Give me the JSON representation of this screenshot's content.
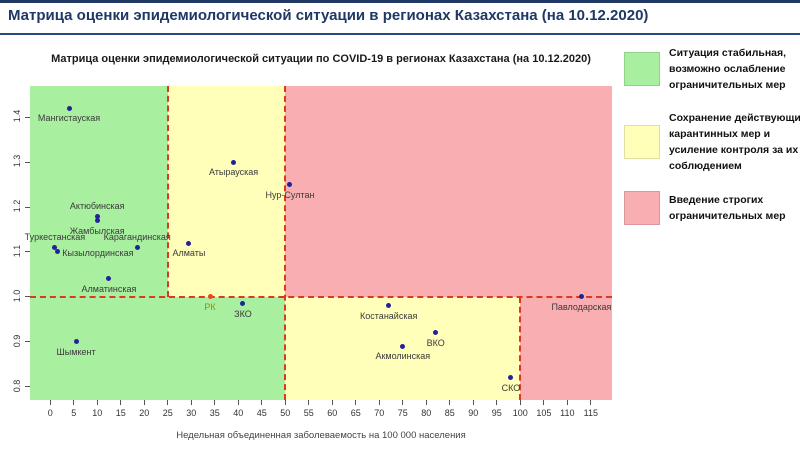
{
  "header": {
    "title": "Матрица оценки эпидемиологической ситуации в регионах Казахстана (на 10.12.2020)"
  },
  "legend": {
    "items": [
      {
        "color": "#a9efa0",
        "lines": [
          "Ситуация стабильная,",
          "возможно ослабление",
          "ограничительных мер"
        ]
      },
      {
        "color": "#ffffba",
        "lines": [
          "Сохранение действующих",
          "карантинных мер и",
          "усиление контроля за их",
          "соблюдением"
        ]
      },
      {
        "color": "#f9aeb2",
        "lines": [
          "Введение строгих",
          "ограничительных мер"
        ]
      }
    ]
  },
  "chart_data": {
    "type": "scatter",
    "title": "Матрица оценки эпидемиологической ситуации по COVID-19 в регионах Казахстана (на 10.12.2020)",
    "xlabel": "Недельная объединенная заболеваемость на 100 000 населения",
    "ylabel": "",
    "xlim": [
      -4.3,
      119.5
    ],
    "ylim": [
      0.771,
      1.469
    ],
    "x_ticks": [
      0,
      5,
      10,
      15,
      20,
      25,
      30,
      35,
      40,
      45,
      50,
      55,
      60,
      65,
      70,
      75,
      80,
      85,
      90,
      95,
      100,
      105,
      110,
      115
    ],
    "y_ticks": [
      0.8,
      0.9,
      1.0,
      1.1,
      1.2,
      1.3,
      1.4
    ],
    "grid": false,
    "legend_position": "right",
    "colors": {
      "green": "#a9efa0",
      "yellow": "#ffffba",
      "pink": "#f9aeb2",
      "dash": "#d93a20",
      "point": "#22229a",
      "label": "#3a3a3a"
    },
    "zones": [
      {
        "name": "zone-green-upper",
        "color": "green",
        "x": [
          -4.3,
          25
        ],
        "y": [
          1.0,
          1.469
        ]
      },
      {
        "name": "zone-yellow-upper",
        "color": "yellow",
        "x": [
          25,
          50
        ],
        "y": [
          1.0,
          1.469
        ]
      },
      {
        "name": "zone-pink-upper",
        "color": "pink",
        "x": [
          50,
          119.5
        ],
        "y": [
          1.0,
          1.469
        ]
      },
      {
        "name": "zone-green-lower",
        "color": "green",
        "x": [
          -4.3,
          50
        ],
        "y": [
          0.771,
          1.0
        ]
      },
      {
        "name": "zone-yellow-lower",
        "color": "yellow",
        "x": [
          50,
          100
        ],
        "y": [
          0.771,
          1.0
        ]
      },
      {
        "name": "zone-pink-lower",
        "color": "pink",
        "x": [
          100,
          119.5
        ],
        "y": [
          0.771,
          1.0
        ]
      }
    ],
    "boundaries": [
      {
        "dir": "h",
        "at": 1.0,
        "from": -4.3,
        "to": 119.5
      },
      {
        "dir": "v",
        "at": 25,
        "from": 1.0,
        "to": 1.469
      },
      {
        "dir": "v",
        "at": 50,
        "from": 0.771,
        "to": 1.469
      },
      {
        "dir": "v",
        "at": 100,
        "from": 0.771,
        "to": 1.0
      }
    ],
    "points": [
      {
        "label": "Мангистауская",
        "x": 4,
        "y": 1.42,
        "pos": "below"
      },
      {
        "label": "Актюбинская",
        "x": 10,
        "y": 1.18,
        "pos": "above"
      },
      {
        "label": "Жамбылская",
        "x": 10,
        "y": 1.17,
        "pos": "below"
      },
      {
        "label": "Туркестанская",
        "x": 1,
        "y": 1.11,
        "pos": "above"
      },
      {
        "label": "Кызылординская",
        "x": 1.5,
        "y": 1.1,
        "pos": "right"
      },
      {
        "label": "Карагандинская",
        "x": 18.5,
        "y": 1.11,
        "pos": "above"
      },
      {
        "label": "Алматинская",
        "x": 12.5,
        "y": 1.04,
        "pos": "below"
      },
      {
        "label": "Алматы",
        "x": 29.5,
        "y": 1.12,
        "pos": "below"
      },
      {
        "label": "Атырауская",
        "x": 39,
        "y": 1.3,
        "pos": "below"
      },
      {
        "label": "Нур-Султан",
        "x": 51,
        "y": 1.25,
        "pos": "below"
      },
      {
        "label": "РК",
        "x": 34,
        "y": 1.0,
        "pos": "below",
        "dot_color": "#e8481c",
        "label_color": "#9b8e00"
      },
      {
        "label": "ЗКО",
        "x": 41,
        "y": 0.985,
        "pos": "below"
      },
      {
        "label": "Шымкент",
        "x": 5.5,
        "y": 0.9,
        "pos": "below"
      },
      {
        "label": "Костанайская",
        "x": 72,
        "y": 0.98,
        "pos": "below"
      },
      {
        "label": "ВКО",
        "x": 82,
        "y": 0.92,
        "pos": "below"
      },
      {
        "label": "Акмолинская",
        "x": 75,
        "y": 0.89,
        "pos": "below"
      },
      {
        "label": "СКО",
        "x": 98,
        "y": 0.82,
        "pos": "below"
      },
      {
        "label": "Павлодарская",
        "x": 113,
        "y": 1.0,
        "pos": "below"
      }
    ]
  }
}
